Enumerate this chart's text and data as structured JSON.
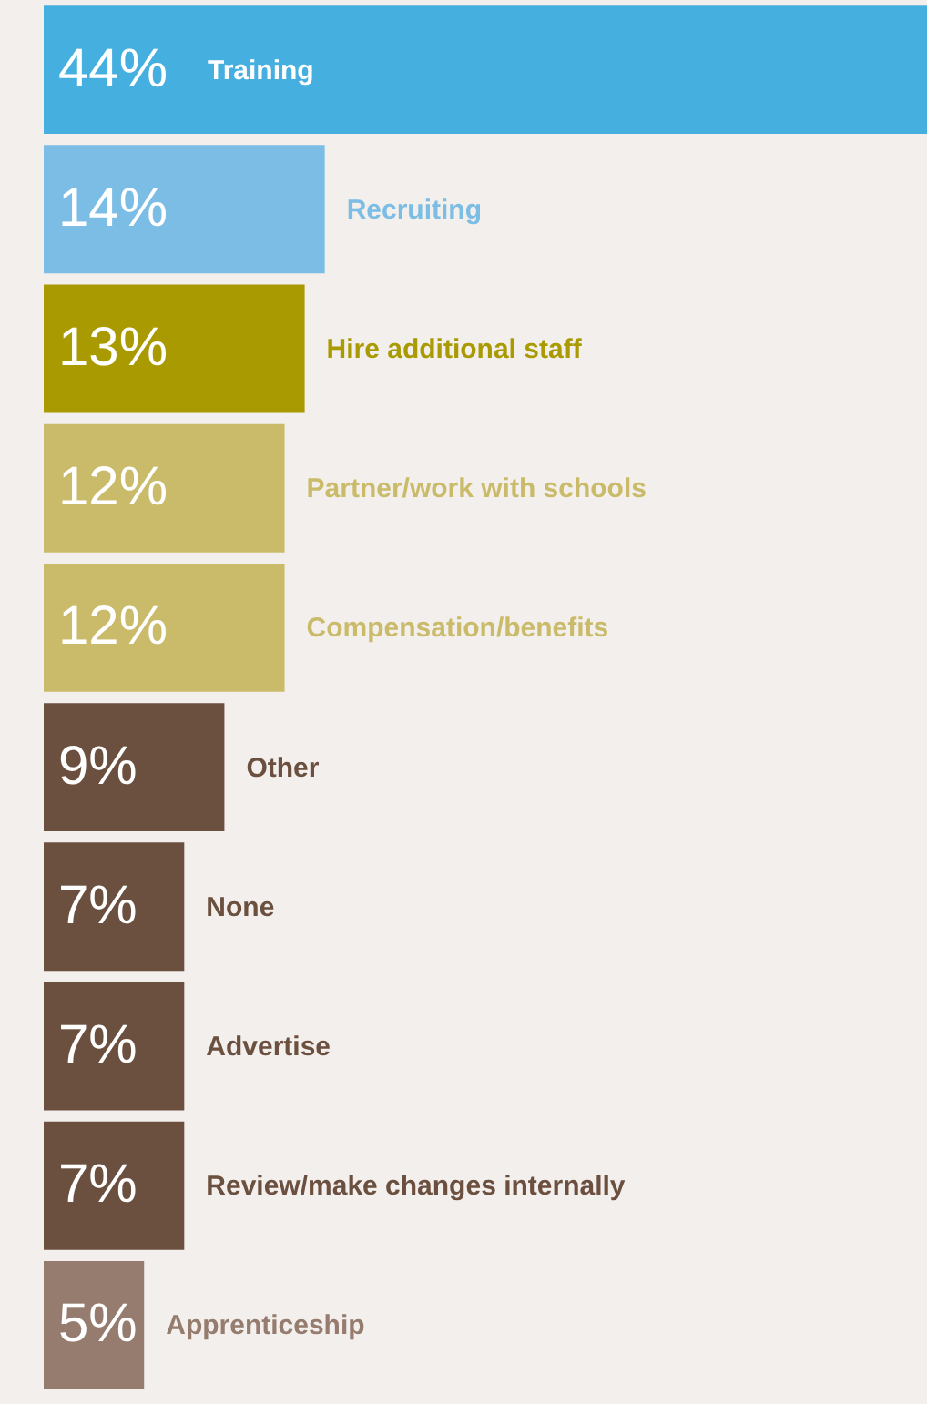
{
  "chart_data": {
    "type": "bar",
    "orientation": "horizontal",
    "categories": [
      "Training",
      "Recruiting",
      "Hire additional staff",
      "Partner/work with schools",
      "Compensation/benefits",
      "Other",
      "None",
      "Advertise",
      "Review/make changes internally",
      "Apprenticeship"
    ],
    "values": [
      44,
      14,
      13,
      12,
      12,
      9,
      7,
      7,
      7,
      5
    ],
    "value_labels": [
      "44%",
      "14%",
      "13%",
      "12%",
      "12%",
      "9%",
      "7%",
      "7%",
      "7%",
      "5%"
    ],
    "colors": [
      "#45b0df",
      "#7bbde4",
      "#a89a00",
      "#cabb6a",
      "#cabb6a",
      "#6b4f3f",
      "#6b4f3f",
      "#6b4f3f",
      "#6b4f3f",
      "#957c6e"
    ],
    "xlim": [
      0,
      44
    ],
    "tick_labels": false
  }
}
